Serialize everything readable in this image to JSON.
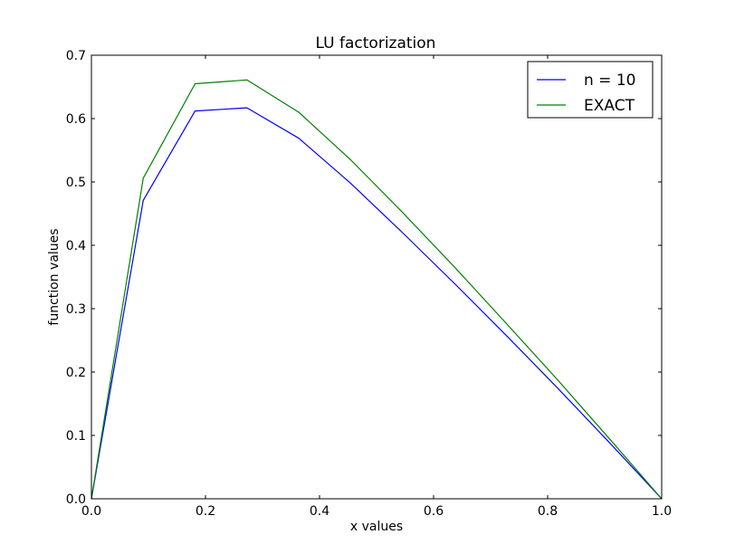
{
  "chart_data": {
    "type": "line",
    "title": "LU factorization",
    "xlabel": "x values",
    "ylabel": "function values",
    "xlim": [
      0.0,
      1.0
    ],
    "ylim": [
      0.0,
      0.7
    ],
    "xticks": [
      0.0,
      0.2,
      0.4,
      0.6,
      0.8,
      1.0
    ],
    "xtick_labels": [
      "0.0",
      "0.2",
      "0.4",
      "0.6",
      "0.8",
      "1.0"
    ],
    "yticks": [
      0.0,
      0.1,
      0.2,
      0.3,
      0.4,
      0.5,
      0.6,
      0.7
    ],
    "ytick_labels": [
      "0.0",
      "0.1",
      "0.2",
      "0.3",
      "0.4",
      "0.5",
      "0.6",
      "0.7"
    ],
    "grid": false,
    "legend_position": "top-right",
    "x": [
      0.0,
      0.0909,
      0.1818,
      0.2727,
      0.3636,
      0.4545,
      0.5455,
      0.6364,
      0.7273,
      0.8182,
      0.9091,
      1.0
    ],
    "series": [
      {
        "name": "n = 10",
        "color": "#0000ff",
        "values": [
          0.0,
          0.471,
          0.612,
          0.617,
          0.569,
          0.498,
          0.42,
          0.34,
          0.258,
          0.174,
          0.088,
          0.0
        ]
      },
      {
        "name": "EXACT",
        "color": "#008000",
        "values": [
          0.0,
          0.506,
          0.655,
          0.661,
          0.61,
          0.535,
          0.452,
          0.366,
          0.277,
          0.187,
          0.094,
          0.0
        ]
      }
    ]
  }
}
